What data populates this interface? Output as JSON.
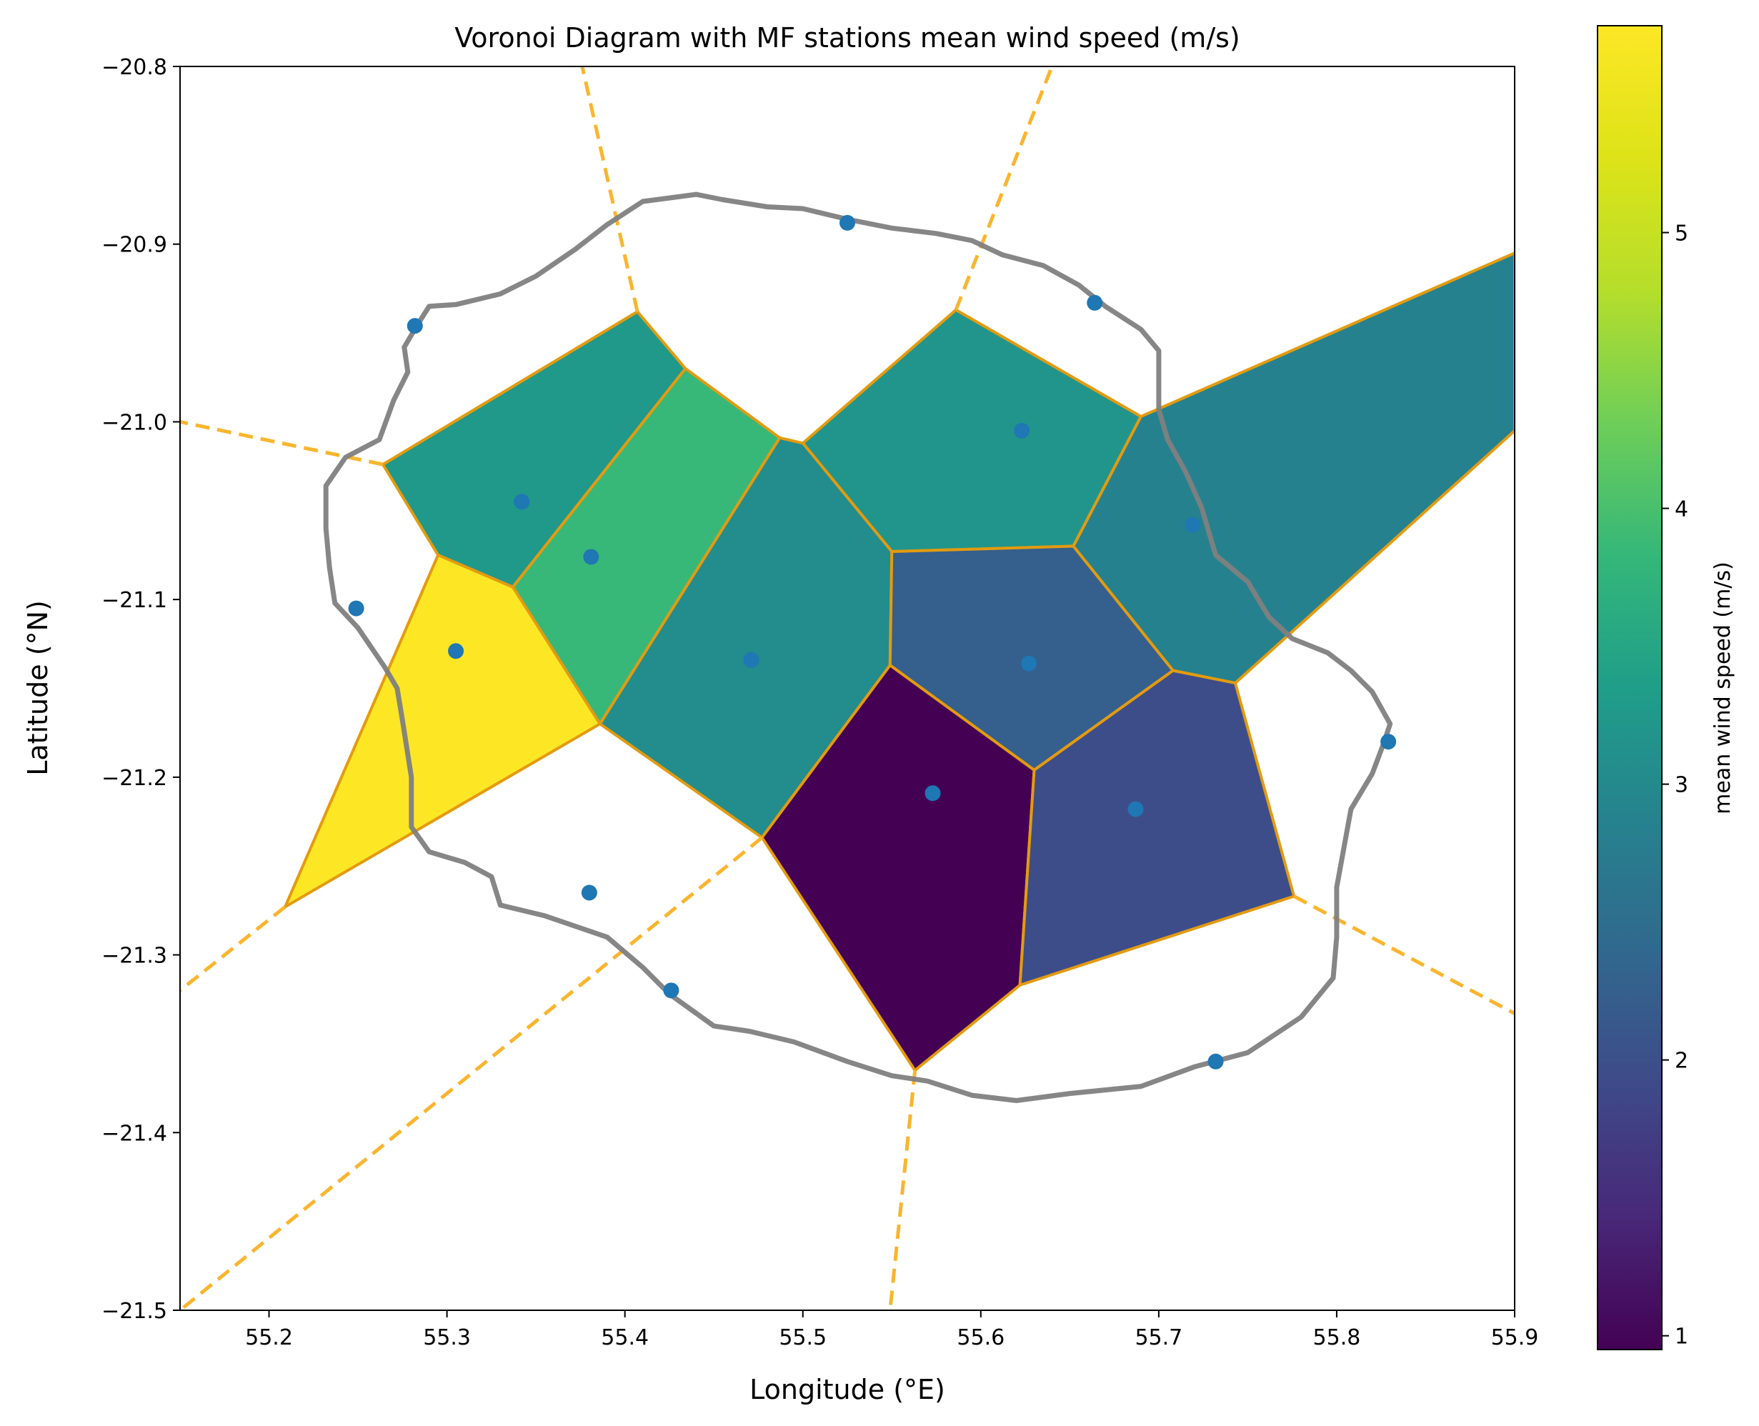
{
  "chart_data": {
    "type": "voronoi-map",
    "title": "Voronoi Diagram with MF stations mean wind speed (m/s)",
    "xlabel": "Longitude ($^\\circ$E)",
    "ylabel": "Latitude ($^\\circ$N)",
    "xlabel_display": "Longitude (°E)",
    "ylabel_display": "Latitude (°N)",
    "xlim": [
      55.15,
      55.9
    ],
    "ylim": [
      -21.5,
      -20.8
    ],
    "xticks": [
      55.2,
      55.3,
      55.4,
      55.5,
      55.6,
      55.7,
      55.8,
      55.9
    ],
    "xtick_labels": [
      "55.2",
      "55.3",
      "55.4",
      "55.5",
      "55.6",
      "55.7",
      "55.8",
      "55.9"
    ],
    "yticks": [
      -20.8,
      -20.9,
      -21.0,
      -21.1,
      -21.2,
      -21.3,
      -21.4,
      -21.5
    ],
    "ytick_labels": [
      "−20.8",
      "−20.9",
      "−21.0",
      "−21.1",
      "−21.2",
      "−21.3",
      "−21.4",
      "−21.5"
    ],
    "colorbar": {
      "label": "mean wind speed (m/s)",
      "colormap": "viridis",
      "range": [
        0.95,
        5.75
      ],
      "ticks": [
        1,
        2,
        3,
        4,
        5
      ],
      "tick_labels": [
        "1",
        "2",
        "3",
        "4",
        "5"
      ]
    },
    "stations": [
      {
        "lon": 55.525,
        "lat": -20.888
      },
      {
        "lon": 55.664,
        "lat": -20.933
      },
      {
        "lon": 55.282,
        "lat": -20.946
      },
      {
        "lon": 55.623,
        "lat": -21.005
      },
      {
        "lon": 55.342,
        "lat": -21.045
      },
      {
        "lon": 55.381,
        "lat": -21.076
      },
      {
        "lon": 55.719,
        "lat": -21.058
      },
      {
        "lon": 55.249,
        "lat": -21.105
      },
      {
        "lon": 55.305,
        "lat": -21.129
      },
      {
        "lon": 55.471,
        "lat": -21.134
      },
      {
        "lon": 55.627,
        "lat": -21.136
      },
      {
        "lon": 55.829,
        "lat": -21.18
      },
      {
        "lon": 55.573,
        "lat": -21.209
      },
      {
        "lon": 55.687,
        "lat": -21.218
      },
      {
        "lon": 55.38,
        "lat": -21.265
      },
      {
        "lon": 55.426,
        "lat": -21.32
      },
      {
        "lon": 55.732,
        "lat": -21.36
      }
    ],
    "cells": [
      {
        "value": 3.25,
        "polygon": [
          [
            55.264,
            -21.024
          ],
          [
            55.407,
            -20.938
          ],
          [
            55.434,
            -20.97
          ],
          [
            55.337,
            -21.093
          ],
          [
            55.295,
            -21.075
          ]
        ]
      },
      {
        "value": 3.85,
        "polygon": [
          [
            55.434,
            -20.97
          ],
          [
            55.487,
            -21.009
          ],
          [
            55.386,
            -21.17
          ],
          [
            55.337,
            -21.093
          ]
        ]
      },
      {
        "value": 3.2,
        "polygon": [
          [
            55.586,
            -20.937
          ],
          [
            55.69,
            -20.997
          ],
          [
            55.652,
            -21.07
          ],
          [
            55.55,
            -21.073
          ],
          [
            55.5,
            -21.012
          ]
        ]
      },
      {
        "value": 2.85,
        "polygon": [
          [
            55.69,
            -20.997
          ],
          [
            55.9,
            -20.905
          ],
          [
            55.9,
            -21.005
          ],
          [
            55.743,
            -21.147
          ],
          [
            55.708,
            -21.14
          ],
          [
            55.652,
            -21.07
          ]
        ]
      },
      {
        "value": 5.75,
        "polygon": [
          [
            55.295,
            -21.075
          ],
          [
            55.337,
            -21.093
          ],
          [
            55.386,
            -21.17
          ],
          [
            55.209,
            -21.273
          ]
        ]
      },
      {
        "value": 3.05,
        "polygon": [
          [
            55.487,
            -21.009
          ],
          [
            55.5,
            -21.012
          ],
          [
            55.55,
            -21.073
          ],
          [
            55.549,
            -21.137
          ],
          [
            55.477,
            -21.234
          ],
          [
            55.386,
            -21.17
          ]
        ]
      },
      {
        "value": 2.25,
        "polygon": [
          [
            55.55,
            -21.073
          ],
          [
            55.652,
            -21.07
          ],
          [
            55.708,
            -21.14
          ],
          [
            55.63,
            -21.196
          ],
          [
            55.549,
            -21.137
          ]
        ]
      },
      {
        "value": 0.95,
        "polygon": [
          [
            55.549,
            -21.137
          ],
          [
            55.63,
            -21.196
          ],
          [
            55.622,
            -21.317
          ],
          [
            55.563,
            -21.365
          ],
          [
            55.477,
            -21.234
          ]
        ]
      },
      {
        "value": 1.95,
        "polygon": [
          [
            55.63,
            -21.196
          ],
          [
            55.708,
            -21.14
          ],
          [
            55.743,
            -21.147
          ],
          [
            55.776,
            -21.267
          ],
          [
            55.622,
            -21.317
          ]
        ]
      }
    ],
    "infinite_ridges": [
      {
        "from": [
          55.407,
          -20.938
        ],
        "to": [
          55.376,
          -20.8
        ]
      },
      {
        "from": [
          55.586,
          -20.937
        ],
        "to": [
          55.64,
          -20.8
        ]
      },
      {
        "from": [
          55.264,
          -21.024
        ],
        "to": [
          55.15,
          -21.0
        ]
      },
      {
        "from": [
          55.209,
          -21.273
        ],
        "to": [
          55.15,
          -21.32
        ]
      },
      {
        "from": [
          55.477,
          -21.234
        ],
        "to": [
          55.15,
          -21.5
        ]
      },
      {
        "from": [
          55.563,
          -21.365
        ],
        "to": [
          55.549,
          -21.5
        ]
      },
      {
        "from": [
          55.776,
          -21.267
        ],
        "to": [
          55.9,
          -21.333
        ]
      }
    ],
    "coastline": [
      [
        55.41,
        -20.876
      ],
      [
        55.44,
        -20.872
      ],
      [
        55.455,
        -20.875
      ],
      [
        55.48,
        -20.879
      ],
      [
        55.5,
        -20.88
      ],
      [
        55.525,
        -20.886
      ],
      [
        55.55,
        -20.891
      ],
      [
        55.575,
        -20.894
      ],
      [
        55.595,
        -20.898
      ],
      [
        55.612,
        -20.906
      ],
      [
        55.635,
        -20.912
      ],
      [
        55.655,
        -20.923
      ],
      [
        55.67,
        -20.935
      ],
      [
        55.69,
        -20.948
      ],
      [
        55.7,
        -20.96
      ],
      [
        55.7,
        -20.978
      ],
      [
        55.7,
        -20.993
      ],
      [
        55.705,
        -21.01
      ],
      [
        55.715,
        -21.028
      ],
      [
        55.724,
        -21.048
      ],
      [
        55.732,
        -21.075
      ],
      [
        55.75,
        -21.09
      ],
      [
        55.762,
        -21.11
      ],
      [
        55.775,
        -21.122
      ],
      [
        55.795,
        -21.13
      ],
      [
        55.808,
        -21.14
      ],
      [
        55.82,
        -21.152
      ],
      [
        55.83,
        -21.17
      ],
      [
        55.826,
        -21.182
      ],
      [
        55.82,
        -21.198
      ],
      [
        55.808,
        -21.218
      ],
      [
        55.804,
        -21.24
      ],
      [
        55.8,
        -21.262
      ],
      [
        55.8,
        -21.29
      ],
      [
        55.798,
        -21.313
      ],
      [
        55.78,
        -21.335
      ],
      [
        55.75,
        -21.355
      ],
      [
        55.72,
        -21.363
      ],
      [
        55.69,
        -21.374
      ],
      [
        55.65,
        -21.378
      ],
      [
        55.62,
        -21.382
      ],
      [
        55.595,
        -21.379
      ],
      [
        55.57,
        -21.371
      ],
      [
        55.55,
        -21.368
      ],
      [
        55.525,
        -21.36
      ],
      [
        55.495,
        -21.349
      ],
      [
        55.47,
        -21.343
      ],
      [
        55.45,
        -21.34
      ],
      [
        55.425,
        -21.322
      ],
      [
        55.41,
        -21.307
      ],
      [
        55.39,
        -21.29
      ],
      [
        55.355,
        -21.278
      ],
      [
        55.33,
        -21.272
      ],
      [
        55.325,
        -21.256
      ],
      [
        55.31,
        -21.248
      ],
      [
        55.29,
        -21.242
      ],
      [
        55.28,
        -21.228
      ],
      [
        55.28,
        -21.2
      ],
      [
        55.275,
        -21.168
      ],
      [
        55.272,
        -21.15
      ],
      [
        55.265,
        -21.138
      ],
      [
        55.25,
        -21.116
      ],
      [
        55.237,
        -21.102
      ],
      [
        55.234,
        -21.082
      ],
      [
        55.232,
        -21.06
      ],
      [
        55.232,
        -21.036
      ],
      [
        55.243,
        -21.02
      ],
      [
        55.262,
        -21.01
      ],
      [
        55.27,
        -20.988
      ],
      [
        55.278,
        -20.972
      ],
      [
        55.276,
        -20.958
      ],
      [
        55.283,
        -20.946
      ],
      [
        55.29,
        -20.935
      ],
      [
        55.305,
        -20.934
      ],
      [
        55.33,
        -20.928
      ],
      [
        55.35,
        -20.918
      ],
      [
        55.372,
        -20.903
      ],
      [
        55.39,
        -20.889
      ],
      [
        55.41,
        -20.876
      ]
    ]
  }
}
